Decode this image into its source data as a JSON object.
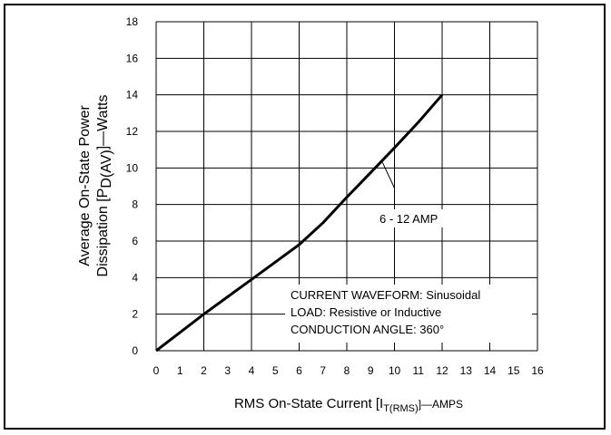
{
  "chart_data": {
    "type": "line",
    "xlim": [
      0,
      16
    ],
    "ylim": [
      0,
      18
    ],
    "x_ticks": [
      "0",
      "1",
      "2",
      "3",
      "4",
      "5",
      "6",
      "7",
      "8",
      "9",
      "10",
      "11",
      "12",
      "13",
      "14",
      "15",
      "16"
    ],
    "y_ticks": [
      "0",
      "2",
      "4",
      "6",
      "8",
      "10",
      "12",
      "14",
      "16",
      "18"
    ],
    "grid": true,
    "xlabel": {
      "main": "RMS On-State Current [I",
      "sub": "T(RMS)",
      "end": "]—AMPS"
    },
    "ylabel": {
      "line1": "Average On-State Power",
      "line2_main": "Dissipation [P",
      "line2_sub": "D(AV)",
      "line2_end": "]—Watts"
    },
    "series": [
      {
        "name": "6 - 12 AMP",
        "x": [
          0,
          1,
          2,
          3,
          4,
          5,
          6,
          7,
          8,
          9,
          10,
          11,
          12
        ],
        "y": [
          0,
          1.0,
          2.0,
          2.95,
          3.9,
          4.85,
          5.8,
          7.0,
          8.4,
          9.75,
          11.1,
          12.5,
          14.0
        ]
      }
    ],
    "annotations": [
      "CURRENT WAVEFORM: Sinusoidal",
      "LOAD: Resistive or Inductive",
      "CONDUCTION ANGLE: 360°"
    ]
  }
}
